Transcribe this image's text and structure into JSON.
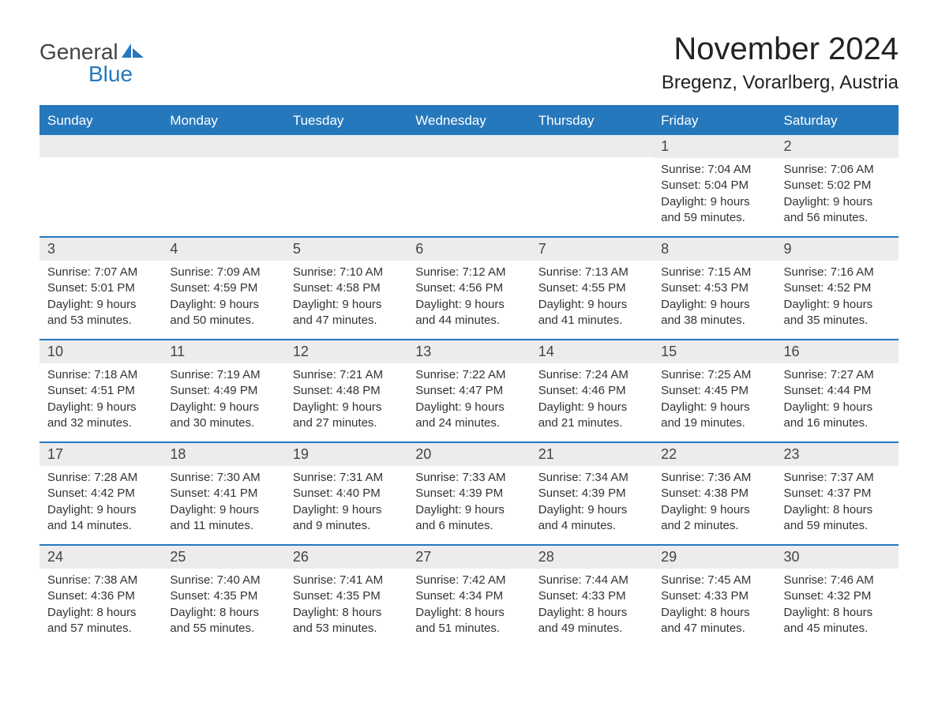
{
  "brand": {
    "part1": "General",
    "part2": "Blue",
    "color": "#2678bd"
  },
  "title": "November 2024",
  "location": "Bregenz, Vorarlberg, Austria",
  "weekdays": [
    "Sunday",
    "Monday",
    "Tuesday",
    "Wednesday",
    "Thursday",
    "Friday",
    "Saturday"
  ],
  "weeks": [
    [
      null,
      null,
      null,
      null,
      null,
      {
        "n": "1",
        "sunrise": "Sunrise: 7:04 AM",
        "sunset": "Sunset: 5:04 PM",
        "day1": "Daylight: 9 hours",
        "day2": "and 59 minutes."
      },
      {
        "n": "2",
        "sunrise": "Sunrise: 7:06 AM",
        "sunset": "Sunset: 5:02 PM",
        "day1": "Daylight: 9 hours",
        "day2": "and 56 minutes."
      }
    ],
    [
      {
        "n": "3",
        "sunrise": "Sunrise: 7:07 AM",
        "sunset": "Sunset: 5:01 PM",
        "day1": "Daylight: 9 hours",
        "day2": "and 53 minutes."
      },
      {
        "n": "4",
        "sunrise": "Sunrise: 7:09 AM",
        "sunset": "Sunset: 4:59 PM",
        "day1": "Daylight: 9 hours",
        "day2": "and 50 minutes."
      },
      {
        "n": "5",
        "sunrise": "Sunrise: 7:10 AM",
        "sunset": "Sunset: 4:58 PM",
        "day1": "Daylight: 9 hours",
        "day2": "and 47 minutes."
      },
      {
        "n": "6",
        "sunrise": "Sunrise: 7:12 AM",
        "sunset": "Sunset: 4:56 PM",
        "day1": "Daylight: 9 hours",
        "day2": "and 44 minutes."
      },
      {
        "n": "7",
        "sunrise": "Sunrise: 7:13 AM",
        "sunset": "Sunset: 4:55 PM",
        "day1": "Daylight: 9 hours",
        "day2": "and 41 minutes."
      },
      {
        "n": "8",
        "sunrise": "Sunrise: 7:15 AM",
        "sunset": "Sunset: 4:53 PM",
        "day1": "Daylight: 9 hours",
        "day2": "and 38 minutes."
      },
      {
        "n": "9",
        "sunrise": "Sunrise: 7:16 AM",
        "sunset": "Sunset: 4:52 PM",
        "day1": "Daylight: 9 hours",
        "day2": "and 35 minutes."
      }
    ],
    [
      {
        "n": "10",
        "sunrise": "Sunrise: 7:18 AM",
        "sunset": "Sunset: 4:51 PM",
        "day1": "Daylight: 9 hours",
        "day2": "and 32 minutes."
      },
      {
        "n": "11",
        "sunrise": "Sunrise: 7:19 AM",
        "sunset": "Sunset: 4:49 PM",
        "day1": "Daylight: 9 hours",
        "day2": "and 30 minutes."
      },
      {
        "n": "12",
        "sunrise": "Sunrise: 7:21 AM",
        "sunset": "Sunset: 4:48 PM",
        "day1": "Daylight: 9 hours",
        "day2": "and 27 minutes."
      },
      {
        "n": "13",
        "sunrise": "Sunrise: 7:22 AM",
        "sunset": "Sunset: 4:47 PM",
        "day1": "Daylight: 9 hours",
        "day2": "and 24 minutes."
      },
      {
        "n": "14",
        "sunrise": "Sunrise: 7:24 AM",
        "sunset": "Sunset: 4:46 PM",
        "day1": "Daylight: 9 hours",
        "day2": "and 21 minutes."
      },
      {
        "n": "15",
        "sunrise": "Sunrise: 7:25 AM",
        "sunset": "Sunset: 4:45 PM",
        "day1": "Daylight: 9 hours",
        "day2": "and 19 minutes."
      },
      {
        "n": "16",
        "sunrise": "Sunrise: 7:27 AM",
        "sunset": "Sunset: 4:44 PM",
        "day1": "Daylight: 9 hours",
        "day2": "and 16 minutes."
      }
    ],
    [
      {
        "n": "17",
        "sunrise": "Sunrise: 7:28 AM",
        "sunset": "Sunset: 4:42 PM",
        "day1": "Daylight: 9 hours",
        "day2": "and 14 minutes."
      },
      {
        "n": "18",
        "sunrise": "Sunrise: 7:30 AM",
        "sunset": "Sunset: 4:41 PM",
        "day1": "Daylight: 9 hours",
        "day2": "and 11 minutes."
      },
      {
        "n": "19",
        "sunrise": "Sunrise: 7:31 AM",
        "sunset": "Sunset: 4:40 PM",
        "day1": "Daylight: 9 hours",
        "day2": "and 9 minutes."
      },
      {
        "n": "20",
        "sunrise": "Sunrise: 7:33 AM",
        "sunset": "Sunset: 4:39 PM",
        "day1": "Daylight: 9 hours",
        "day2": "and 6 minutes."
      },
      {
        "n": "21",
        "sunrise": "Sunrise: 7:34 AM",
        "sunset": "Sunset: 4:39 PM",
        "day1": "Daylight: 9 hours",
        "day2": "and 4 minutes."
      },
      {
        "n": "22",
        "sunrise": "Sunrise: 7:36 AM",
        "sunset": "Sunset: 4:38 PM",
        "day1": "Daylight: 9 hours",
        "day2": "and 2 minutes."
      },
      {
        "n": "23",
        "sunrise": "Sunrise: 7:37 AM",
        "sunset": "Sunset: 4:37 PM",
        "day1": "Daylight: 8 hours",
        "day2": "and 59 minutes."
      }
    ],
    [
      {
        "n": "24",
        "sunrise": "Sunrise: 7:38 AM",
        "sunset": "Sunset: 4:36 PM",
        "day1": "Daylight: 8 hours",
        "day2": "and 57 minutes."
      },
      {
        "n": "25",
        "sunrise": "Sunrise: 7:40 AM",
        "sunset": "Sunset: 4:35 PM",
        "day1": "Daylight: 8 hours",
        "day2": "and 55 minutes."
      },
      {
        "n": "26",
        "sunrise": "Sunrise: 7:41 AM",
        "sunset": "Sunset: 4:35 PM",
        "day1": "Daylight: 8 hours",
        "day2": "and 53 minutes."
      },
      {
        "n": "27",
        "sunrise": "Sunrise: 7:42 AM",
        "sunset": "Sunset: 4:34 PM",
        "day1": "Daylight: 8 hours",
        "day2": "and 51 minutes."
      },
      {
        "n": "28",
        "sunrise": "Sunrise: 7:44 AM",
        "sunset": "Sunset: 4:33 PM",
        "day1": "Daylight: 8 hours",
        "day2": "and 49 minutes."
      },
      {
        "n": "29",
        "sunrise": "Sunrise: 7:45 AM",
        "sunset": "Sunset: 4:33 PM",
        "day1": "Daylight: 8 hours",
        "day2": "and 47 minutes."
      },
      {
        "n": "30",
        "sunrise": "Sunrise: 7:46 AM",
        "sunset": "Sunset: 4:32 PM",
        "day1": "Daylight: 8 hours",
        "day2": "and 45 minutes."
      }
    ]
  ],
  "style": {
    "accent": "#2678bd",
    "weekday_bg": "#2678bd",
    "weekday_text": "#ffffff",
    "daybar_bg": "#ececec",
    "text": "#333333",
    "page_bg": "#ffffff",
    "body_fontsize": 15,
    "title_fontsize": 40,
    "location_fontsize": 24,
    "weekday_fontsize": 17,
    "daynum_fontsize": 18
  }
}
